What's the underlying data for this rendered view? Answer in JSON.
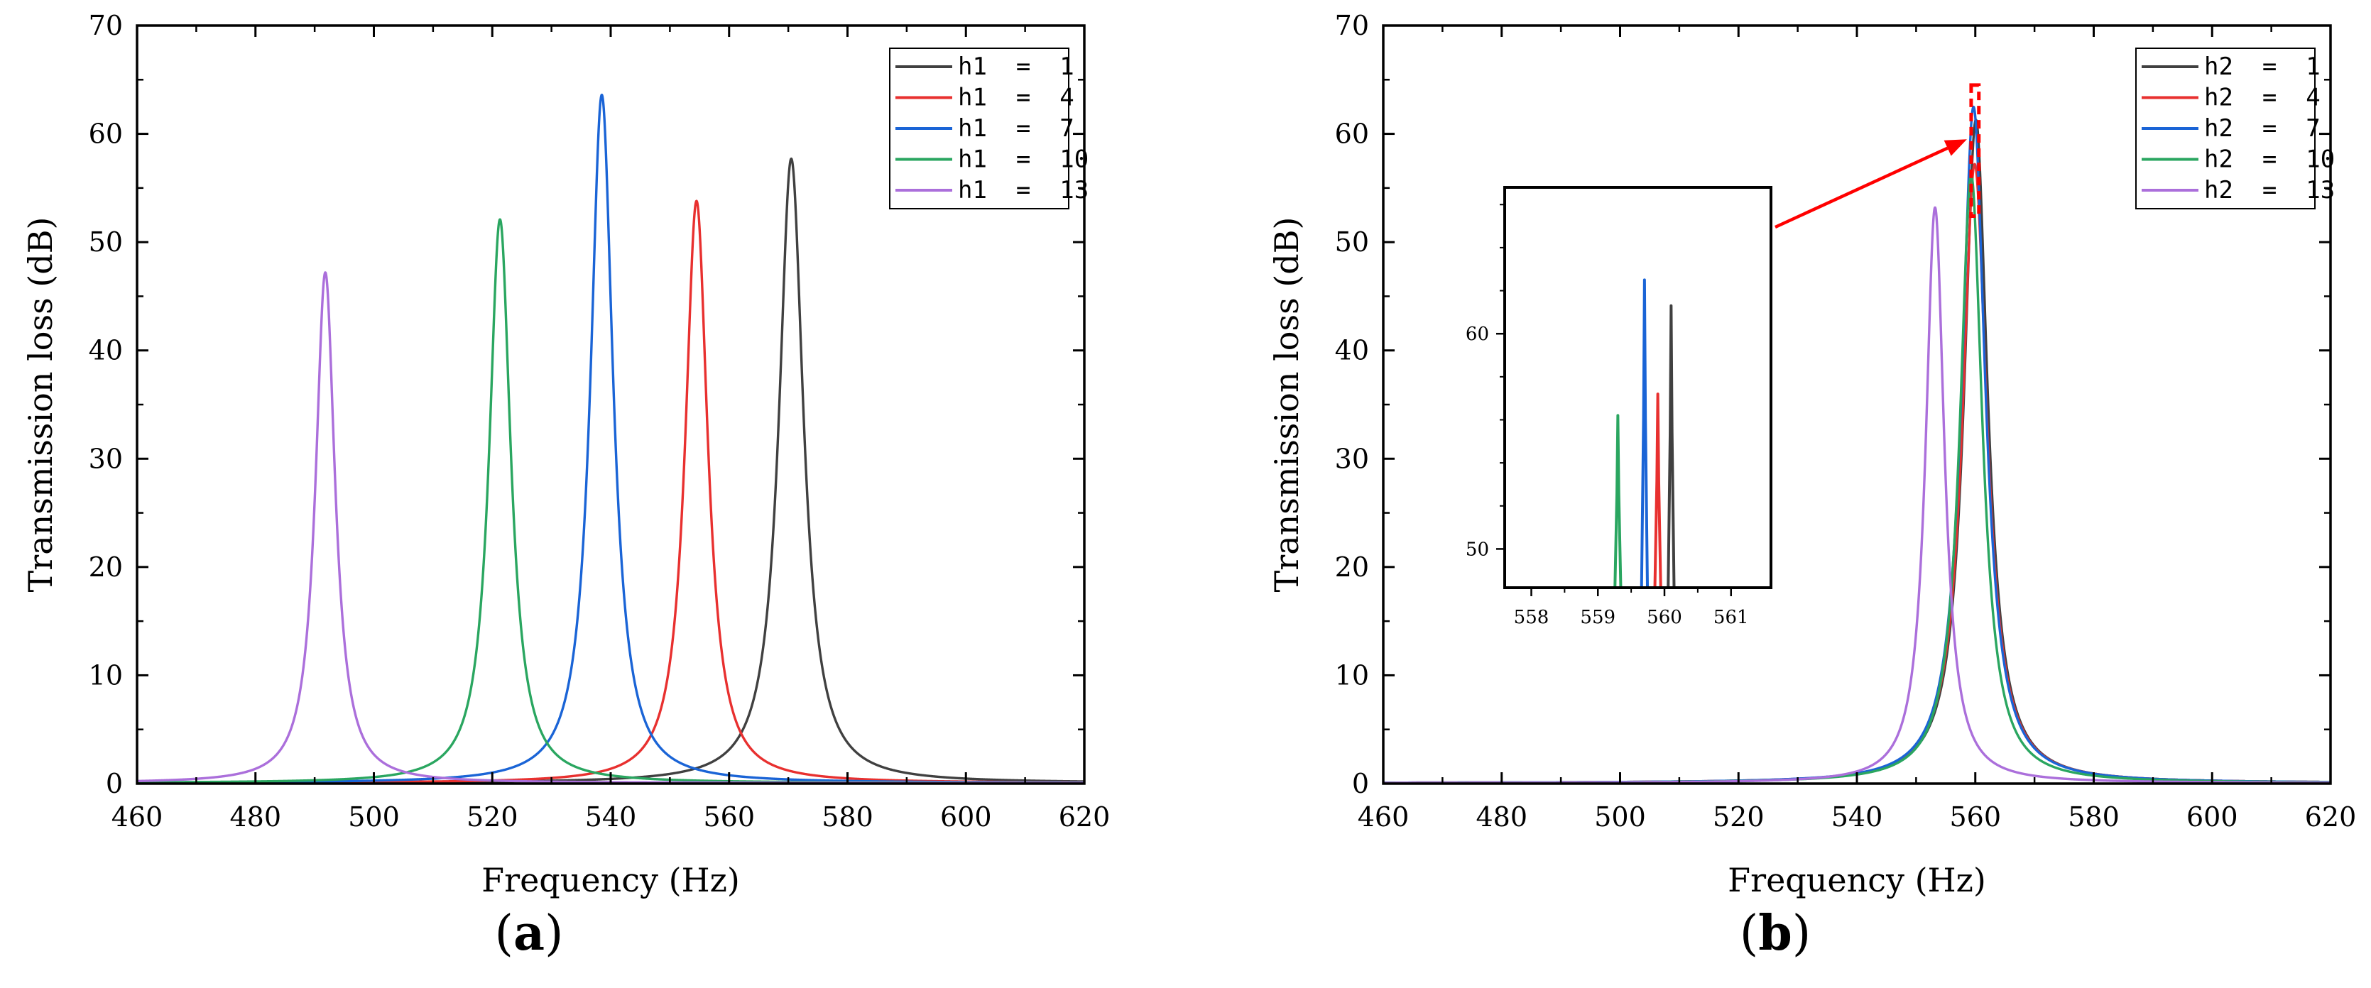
{
  "chart_data": [
    {
      "id": "a",
      "type": "line",
      "panel_label": "a",
      "xlabel": "Frequency (Hz)",
      "ylabel": "Transmission loss (dB)",
      "xlim": [
        460,
        620
      ],
      "ylim": [
        0,
        70
      ],
      "xticks": [
        460,
        480,
        500,
        520,
        540,
        560,
        580,
        600,
        620
      ],
      "yticks": [
        0,
        10,
        20,
        30,
        40,
        50,
        60,
        70
      ],
      "legend_position": "top-right",
      "series": [
        {
          "name": "h1  =  1",
          "color": "#404040",
          "peak_freq": 570.5,
          "peak_tl": 57.7,
          "half_width": 2.5,
          "baseline": 0.05
        },
        {
          "name": "h1  =  4",
          "color": "#e8302f",
          "peak_freq": 554.5,
          "peak_tl": 53.8,
          "half_width": 2.3,
          "baseline": 0.05
        },
        {
          "name": "h1  =  7",
          "color": "#1a64d6",
          "peak_freq": 538.5,
          "peak_tl": 63.6,
          "half_width": 2.3,
          "baseline": 0.05
        },
        {
          "name": "h1  =  10",
          "color": "#2aa660",
          "peak_freq": 521.3,
          "peak_tl": 52.1,
          "half_width": 2.2,
          "baseline": 0.05
        },
        {
          "name": "h1  =  13",
          "color": "#ab6fdb",
          "peak_freq": 491.8,
          "peak_tl": 47.2,
          "half_width": 2.0,
          "baseline": 0.05
        }
      ]
    },
    {
      "id": "b",
      "type": "line",
      "panel_label": "b",
      "xlabel": "Frequency (Hz)",
      "ylabel": "Transmission loss (dB)",
      "xlim": [
        460,
        620
      ],
      "ylim": [
        0,
        70
      ],
      "xticks": [
        460,
        480,
        500,
        520,
        540,
        560,
        580,
        600,
        620
      ],
      "yticks": [
        0,
        10,
        20,
        30,
        40,
        50,
        60,
        70
      ],
      "legend_position": "top-right",
      "series": [
        {
          "name": "h2  =  1",
          "color": "#404040",
          "peak_freq": 560.1,
          "peak_tl": 61.3,
          "half_width": 2.4,
          "baseline": 0.05
        },
        {
          "name": "h2  =  4",
          "color": "#e8302f",
          "peak_freq": 559.9,
          "peak_tl": 57.2,
          "half_width": 2.5,
          "baseline": 0.05
        },
        {
          "name": "h2  =  7",
          "color": "#1a64d6",
          "peak_freq": 559.7,
          "peak_tl": 62.5,
          "half_width": 2.4,
          "baseline": 0.05
        },
        {
          "name": "h2  =  10",
          "color": "#2aa660",
          "peak_freq": 559.3,
          "peak_tl": 56.2,
          "half_width": 2.3,
          "baseline": 0.05
        },
        {
          "name": "h2  =  13",
          "color": "#ab6fdb",
          "peak_freq": 553.2,
          "peak_tl": 53.2,
          "half_width": 1.9,
          "baseline": 0.05
        }
      ],
      "zoom_box": {
        "xlim": [
          559.3,
          560.6
        ],
        "ylim": [
          52.4,
          64.5
        ]
      },
      "inset": {
        "xlim": [
          557.6,
          561.6
        ],
        "ylim": [
          48.2,
          66.8
        ],
        "xticks": [
          558,
          559,
          560,
          561
        ],
        "yticks": [
          50,
          60
        ],
        "peaks": [
          {
            "series": "h2  =  10",
            "freq": 559.3,
            "tl": 56.2,
            "color": "#2aa660"
          },
          {
            "series": "h2  =  7",
            "freq": 559.7,
            "tl": 62.5,
            "color": "#1a64d6"
          },
          {
            "series": "h2  =  4",
            "freq": 559.9,
            "tl": 57.2,
            "color": "#e8302f"
          },
          {
            "series": "h2  =  1",
            "freq": 560.1,
            "tl": 61.3,
            "color": "#404040"
          }
        ]
      }
    }
  ]
}
